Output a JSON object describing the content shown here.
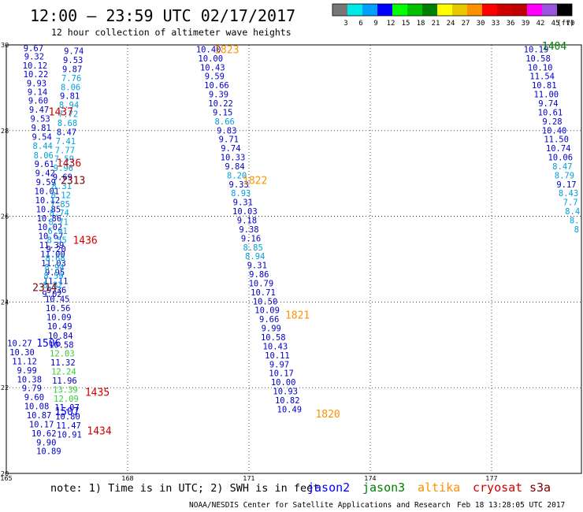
{
  "header": {
    "title": "12:00 – 23:59 UTC 02/17/2017",
    "subtitle": "12 hour collection of altimeter wave heights"
  },
  "colorbar": {
    "ticks": [
      "3",
      "6",
      "9",
      "12",
      "15",
      "18",
      "21",
      "24",
      "27",
      "30",
      "33",
      "36",
      "39",
      "42",
      "45",
      "70"
    ],
    "unit": "(ft)",
    "colors": [
      "#777777",
      "#00e8e8",
      "#00a0ff",
      "#0000ff",
      "#00ff00",
      "#00c000",
      "#008000",
      "#ffff00",
      "#e8c800",
      "#ff9000",
      "#ff0000",
      "#d00000",
      "#c00000",
      "#ff00ff",
      "#9955dd",
      "#000000"
    ]
  },
  "footer": {
    "note": "note:  1) Time is in UTC; 2) SWH is in feet",
    "credit": "NOAA/NESDIS Center for Satellite Applications and Research",
    "timestamp": "Feb 18 13:28:05 UTC 2017"
  },
  "legend": [
    {
      "name": "jason2",
      "color": "#0000ff"
    },
    {
      "name": "jason3",
      "color": "#008000"
    },
    {
      "name": "altika",
      "color": "#ff9000"
    },
    {
      "name": "cryosat",
      "color": "#d00000"
    },
    {
      "name": "s3a",
      "color": "#7b0000"
    }
  ],
  "chart_data": {
    "type": "scatter",
    "x_ticks": [
      "165",
      "168",
      "171",
      "174",
      "177"
    ],
    "y_ticks": [
      "20",
      "22",
      "24",
      "26",
      "28",
      "30"
    ],
    "xlim": [
      165,
      180
    ],
    "ylim": [
      20,
      30
    ],
    "grid": "dotted",
    "colors": {
      "light": "#00a0e0",
      "blue": "#0000c8",
      "green": "#33cc33",
      "orange": "#ff9000",
      "red": "#d00000",
      "darkred": "#7b0000",
      "darkgreen": "#008000",
      "boldblue": "#0000ff"
    },
    "points": [
      {
        "lon": 165.67,
        "lat": 29.93,
        "v": "9.67",
        "c": "blue"
      },
      {
        "lon": 165.69,
        "lat": 29.73,
        "v": "9.32",
        "c": "blue"
      },
      {
        "lon": 165.71,
        "lat": 29.52,
        "v": "10.12",
        "c": "blue"
      },
      {
        "lon": 165.73,
        "lat": 29.32,
        "v": "10.22",
        "c": "blue"
      },
      {
        "lon": 165.75,
        "lat": 29.11,
        "v": "9.93",
        "c": "blue"
      },
      {
        "lon": 165.77,
        "lat": 28.91,
        "v": "9.14",
        "c": "blue"
      },
      {
        "lon": 165.79,
        "lat": 28.7,
        "v": "9.60",
        "c": "blue"
      },
      {
        "lon": 165.81,
        "lat": 28.49,
        "v": "9.47",
        "c": "blue"
      },
      {
        "lon": 165.84,
        "lat": 28.28,
        "v": "9.53",
        "c": "blue"
      },
      {
        "lon": 165.86,
        "lat": 28.07,
        "v": "9.81",
        "c": "blue"
      },
      {
        "lon": 165.88,
        "lat": 27.86,
        "v": "9.54",
        "c": "blue"
      },
      {
        "lon": 165.9,
        "lat": 27.65,
        "v": "8.44",
        "c": "light"
      },
      {
        "lon": 165.92,
        "lat": 27.43,
        "v": "8.06",
        "c": "light"
      },
      {
        "lon": 165.94,
        "lat": 27.22,
        "v": "9.61",
        "c": "blue"
      },
      {
        "lon": 165.96,
        "lat": 27.01,
        "v": "9.42",
        "c": "blue"
      },
      {
        "lon": 165.98,
        "lat": 26.8,
        "v": "9.59",
        "c": "blue"
      },
      {
        "lon": 166.0,
        "lat": 26.59,
        "v": "10.01",
        "c": "blue"
      },
      {
        "lon": 166.02,
        "lat": 26.38,
        "v": "10.12",
        "c": "blue"
      },
      {
        "lon": 166.04,
        "lat": 26.17,
        "v": "10.85",
        "c": "blue"
      },
      {
        "lon": 166.06,
        "lat": 25.96,
        "v": "10.86",
        "c": "blue"
      },
      {
        "lon": 166.08,
        "lat": 25.75,
        "v": "10.02",
        "c": "blue"
      },
      {
        "lon": 166.1,
        "lat": 25.54,
        "v": "10.67",
        "c": "blue"
      },
      {
        "lon": 166.12,
        "lat": 25.33,
        "v": "11.39",
        "c": "blue"
      },
      {
        "lon": 166.15,
        "lat": 25.12,
        "v": "11.00",
        "c": "blue"
      },
      {
        "lon": 166.17,
        "lat": 24.91,
        "v": "11.03",
        "c": "blue"
      },
      {
        "lon": 166.2,
        "lat": 24.7,
        "v": "9.95",
        "c": "blue"
      },
      {
        "lon": 166.22,
        "lat": 24.49,
        "v": "11.11",
        "c": "blue"
      },
      {
        "lon": 166.24,
        "lat": 24.28,
        "v": "9.36",
        "c": "blue"
      },
      {
        "lon": 166.26,
        "lat": 24.07,
        "v": "10.45",
        "c": "blue"
      },
      {
        "lon": 166.28,
        "lat": 23.86,
        "v": "10.56",
        "c": "blue"
      },
      {
        "lon": 166.3,
        "lat": 23.65,
        "v": "10.09",
        "c": "blue"
      },
      {
        "lon": 166.32,
        "lat": 23.44,
        "v": "10.49",
        "c": "blue"
      },
      {
        "lon": 166.34,
        "lat": 23.22,
        "v": "10.84",
        "c": "blue"
      },
      {
        "lon": 166.36,
        "lat": 23.01,
        "v": "10.58",
        "c": "blue"
      },
      {
        "lon": 166.38,
        "lat": 22.8,
        "v": "12.03",
        "c": "green"
      },
      {
        "lon": 166.4,
        "lat": 22.59,
        "v": "11.32",
        "c": "blue"
      },
      {
        "lon": 166.42,
        "lat": 22.38,
        "v": "12.24",
        "c": "green"
      },
      {
        "lon": 166.44,
        "lat": 22.17,
        "v": "11.96",
        "c": "blue"
      },
      {
        "lon": 166.46,
        "lat": 21.96,
        "v": "13.39",
        "c": "green"
      },
      {
        "lon": 166.48,
        "lat": 21.75,
        "v": "12.09",
        "c": "green"
      },
      {
        "lon": 166.5,
        "lat": 21.54,
        "v": "11.07",
        "c": "blue"
      },
      {
        "lon": 166.52,
        "lat": 21.33,
        "v": "10.80",
        "c": "blue"
      },
      {
        "lon": 166.54,
        "lat": 21.12,
        "v": "11.47",
        "c": "blue"
      },
      {
        "lon": 166.56,
        "lat": 20.91,
        "v": "10.91",
        "c": "blue"
      },
      {
        "lon": 166.67,
        "lat": 29.86,
        "v": "9.74",
        "c": "blue"
      },
      {
        "lon": 166.65,
        "lat": 29.65,
        "v": "9.53",
        "c": "blue"
      },
      {
        "lon": 166.63,
        "lat": 29.44,
        "v": "9.87",
        "c": "blue"
      },
      {
        "lon": 166.61,
        "lat": 29.23,
        "v": "7.76",
        "c": "light"
      },
      {
        "lon": 166.59,
        "lat": 29.02,
        "v": "8.06",
        "c": "light"
      },
      {
        "lon": 166.57,
        "lat": 28.81,
        "v": "9.81",
        "c": "blue"
      },
      {
        "lon": 166.55,
        "lat": 28.6,
        "v": "8.94",
        "c": "light"
      },
      {
        "lon": 166.53,
        "lat": 28.39,
        "v": "7.72",
        "c": "light"
      },
      {
        "lon": 166.51,
        "lat": 28.18,
        "v": "8.68",
        "c": "light"
      },
      {
        "lon": 166.49,
        "lat": 27.97,
        "v": "8.47",
        "c": "blue"
      },
      {
        "lon": 166.47,
        "lat": 27.76,
        "v": "7.41",
        "c": "light"
      },
      {
        "lon": 166.45,
        "lat": 27.55,
        "v": "7.77",
        "c": "light"
      },
      {
        "lon": 166.43,
        "lat": 27.34,
        "v": "7.59",
        "c": "light"
      },
      {
        "lon": 166.41,
        "lat": 27.13,
        "v": "9.96",
        "c": "light"
      },
      {
        "lon": 166.39,
        "lat": 26.92,
        "v": "9.69",
        "c": "blue"
      },
      {
        "lon": 166.37,
        "lat": 26.71,
        "v": "8.31",
        "c": "light"
      },
      {
        "lon": 166.35,
        "lat": 26.5,
        "v": "8.12",
        "c": "light"
      },
      {
        "lon": 166.33,
        "lat": 26.29,
        "v": "7.85",
        "c": "light"
      },
      {
        "lon": 166.31,
        "lat": 26.08,
        "v": "8.74",
        "c": "light"
      },
      {
        "lon": 166.29,
        "lat": 25.87,
        "v": "8.71",
        "c": "light"
      },
      {
        "lon": 166.27,
        "lat": 25.66,
        "v": "6.91",
        "c": "light"
      },
      {
        "lon": 166.25,
        "lat": 25.45,
        "v": "8.55",
        "c": "light"
      },
      {
        "lon": 166.23,
        "lat": 25.24,
        "v": "9.20",
        "c": "blue"
      },
      {
        "lon": 166.21,
        "lat": 25.03,
        "v": "8.68",
        "c": "light"
      },
      {
        "lon": 166.19,
        "lat": 24.82,
        "v": "8.94",
        "c": "light"
      },
      {
        "lon": 166.17,
        "lat": 24.61,
        "v": "8.59",
        "c": "light"
      },
      {
        "lon": 166.15,
        "lat": 24.4,
        "v": "8.82",
        "c": "light"
      },
      {
        "lon": 166.13,
        "lat": 24.19,
        "v": "9.02",
        "c": "blue"
      },
      {
        "lon": 165.33,
        "lat": 23.04,
        "v": "10.27",
        "c": "blue"
      },
      {
        "lon": 165.39,
        "lat": 22.83,
        "v": "10.30",
        "c": "blue"
      },
      {
        "lon": 165.45,
        "lat": 22.62,
        "v": "11.12",
        "c": "blue"
      },
      {
        "lon": 165.51,
        "lat": 22.41,
        "v": "9.99",
        "c": "blue"
      },
      {
        "lon": 165.57,
        "lat": 22.2,
        "v": "10.38",
        "c": "blue"
      },
      {
        "lon": 165.63,
        "lat": 21.99,
        "v": "9.79",
        "c": "blue"
      },
      {
        "lon": 165.69,
        "lat": 21.78,
        "v": "9.60",
        "c": "blue"
      },
      {
        "lon": 165.75,
        "lat": 21.57,
        "v": "10.08",
        "c": "blue"
      },
      {
        "lon": 165.81,
        "lat": 21.36,
        "v": "10.87",
        "c": "blue"
      },
      {
        "lon": 165.87,
        "lat": 21.15,
        "v": "10.17",
        "c": "blue"
      },
      {
        "lon": 165.93,
        "lat": 20.94,
        "v": "10.62",
        "c": "blue"
      },
      {
        "lon": 165.99,
        "lat": 20.73,
        "v": "9.90",
        "c": "blue"
      },
      {
        "lon": 166.05,
        "lat": 20.52,
        "v": "10.89",
        "c": "blue"
      },
      {
        "lon": 170.0,
        "lat": 29.9,
        "v": "10.40",
        "c": "blue"
      },
      {
        "lon": 170.05,
        "lat": 29.69,
        "v": "10.00",
        "c": "blue"
      },
      {
        "lon": 170.1,
        "lat": 29.48,
        "v": "10.43",
        "c": "blue"
      },
      {
        "lon": 170.15,
        "lat": 29.27,
        "v": "9.59",
        "c": "blue"
      },
      {
        "lon": 170.2,
        "lat": 29.06,
        "v": "10.66",
        "c": "blue"
      },
      {
        "lon": 170.25,
        "lat": 28.85,
        "v": "9.39",
        "c": "blue"
      },
      {
        "lon": 170.3,
        "lat": 28.64,
        "v": "10.22",
        "c": "blue"
      },
      {
        "lon": 170.35,
        "lat": 28.43,
        "v": "9.15",
        "c": "blue"
      },
      {
        "lon": 170.4,
        "lat": 28.22,
        "v": "8.66",
        "c": "light"
      },
      {
        "lon": 170.45,
        "lat": 28.01,
        "v": "9.83",
        "c": "blue"
      },
      {
        "lon": 170.5,
        "lat": 27.8,
        "v": "9.71",
        "c": "blue"
      },
      {
        "lon": 170.55,
        "lat": 27.59,
        "v": "9.74",
        "c": "blue"
      },
      {
        "lon": 170.6,
        "lat": 27.38,
        "v": "10.33",
        "c": "blue"
      },
      {
        "lon": 170.65,
        "lat": 27.17,
        "v": "9.84",
        "c": "blue"
      },
      {
        "lon": 170.7,
        "lat": 26.96,
        "v": "8.20",
        "c": "light"
      },
      {
        "lon": 170.75,
        "lat": 26.75,
        "v": "9.33",
        "c": "blue"
      },
      {
        "lon": 170.8,
        "lat": 26.54,
        "v": "8.93",
        "c": "light"
      },
      {
        "lon": 170.85,
        "lat": 26.33,
        "v": "9.31",
        "c": "blue"
      },
      {
        "lon": 170.9,
        "lat": 26.12,
        "v": "10.03",
        "c": "blue"
      },
      {
        "lon": 170.95,
        "lat": 25.91,
        "v": "9.18",
        "c": "blue"
      },
      {
        "lon": 171.0,
        "lat": 25.7,
        "v": "9.38",
        "c": "blue"
      },
      {
        "lon": 171.05,
        "lat": 25.49,
        "v": "9.16",
        "c": "blue"
      },
      {
        "lon": 171.1,
        "lat": 25.28,
        "v": "8.85",
        "c": "light"
      },
      {
        "lon": 171.15,
        "lat": 25.07,
        "v": "8.94",
        "c": "light"
      },
      {
        "lon": 171.2,
        "lat": 24.86,
        "v": "9.31",
        "c": "blue"
      },
      {
        "lon": 171.25,
        "lat": 24.65,
        "v": "9.86",
        "c": "blue"
      },
      {
        "lon": 171.3,
        "lat": 24.44,
        "v": "10.79",
        "c": "blue"
      },
      {
        "lon": 171.35,
        "lat": 24.23,
        "v": "10.71",
        "c": "blue"
      },
      {
        "lon": 171.4,
        "lat": 24.02,
        "v": "10.50",
        "c": "blue"
      },
      {
        "lon": 171.45,
        "lat": 23.81,
        "v": "10.09",
        "c": "blue"
      },
      {
        "lon": 171.5,
        "lat": 23.6,
        "v": "9.66",
        "c": "blue"
      },
      {
        "lon": 171.55,
        "lat": 23.39,
        "v": "9.99",
        "c": "blue"
      },
      {
        "lon": 171.6,
        "lat": 23.18,
        "v": "10.58",
        "c": "blue"
      },
      {
        "lon": 171.65,
        "lat": 22.97,
        "v": "10.43",
        "c": "blue"
      },
      {
        "lon": 171.7,
        "lat": 22.76,
        "v": "10.11",
        "c": "blue"
      },
      {
        "lon": 171.75,
        "lat": 22.55,
        "v": "9.97",
        "c": "blue"
      },
      {
        "lon": 171.8,
        "lat": 22.34,
        "v": "10.17",
        "c": "blue"
      },
      {
        "lon": 171.85,
        "lat": 22.13,
        "v": "10.00",
        "c": "blue"
      },
      {
        "lon": 171.9,
        "lat": 21.92,
        "v": "10.93",
        "c": "blue"
      },
      {
        "lon": 171.95,
        "lat": 21.71,
        "v": "10.82",
        "c": "blue"
      },
      {
        "lon": 172.0,
        "lat": 21.5,
        "v": "10.49",
        "c": "blue"
      },
      {
        "lon": 178.1,
        "lat": 29.9,
        "v": "10.19",
        "c": "blue"
      },
      {
        "lon": 178.15,
        "lat": 29.69,
        "v": "10.58",
        "c": "blue"
      },
      {
        "lon": 178.2,
        "lat": 29.48,
        "v": "10.10",
        "c": "blue"
      },
      {
        "lon": 178.25,
        "lat": 29.27,
        "v": "11.54",
        "c": "blue"
      },
      {
        "lon": 178.3,
        "lat": 29.06,
        "v": "10.81",
        "c": "blue"
      },
      {
        "lon": 178.35,
        "lat": 28.85,
        "v": "11.00",
        "c": "blue"
      },
      {
        "lon": 178.4,
        "lat": 28.64,
        "v": "9.74",
        "c": "blue"
      },
      {
        "lon": 178.45,
        "lat": 28.43,
        "v": "10.61",
        "c": "blue"
      },
      {
        "lon": 178.5,
        "lat": 28.22,
        "v": "9.28",
        "c": "blue"
      },
      {
        "lon": 178.55,
        "lat": 28.01,
        "v": "10.40",
        "c": "blue"
      },
      {
        "lon": 178.6,
        "lat": 27.8,
        "v": "11.50",
        "c": "blue"
      },
      {
        "lon": 178.65,
        "lat": 27.59,
        "v": "10.74",
        "c": "blue"
      },
      {
        "lon": 178.7,
        "lat": 27.38,
        "v": "10.06",
        "c": "blue"
      },
      {
        "lon": 178.75,
        "lat": 27.17,
        "v": "8.47",
        "c": "light"
      },
      {
        "lon": 178.8,
        "lat": 26.96,
        "v": "8.79",
        "c": "light"
      },
      {
        "lon": 178.85,
        "lat": 26.75,
        "v": "9.17",
        "c": "blue"
      },
      {
        "lon": 178.9,
        "lat": 26.54,
        "v": "8.43",
        "c": "light"
      },
      {
        "lon": 178.95,
        "lat": 26.33,
        "v": "7.7",
        "c": "light"
      },
      {
        "lon": 179.0,
        "lat": 26.12,
        "v": "8.4",
        "c": "light"
      },
      {
        "lon": 179.05,
        "lat": 25.91,
        "v": "8.",
        "c": "light"
      },
      {
        "lon": 179.1,
        "lat": 25.7,
        "v": "8",
        "c": "light"
      }
    ],
    "time_labels": [
      {
        "lon": 170.45,
        "lat": 29.9,
        "v": "1823",
        "c": "orange"
      },
      {
        "lon": 171.15,
        "lat": 26.85,
        "v": "1822",
        "c": "orange"
      },
      {
        "lon": 172.2,
        "lat": 23.7,
        "v": "1821",
        "c": "orange"
      },
      {
        "lon": 172.95,
        "lat": 21.4,
        "v": "1820",
        "c": "orange"
      },
      {
        "lon": 178.55,
        "lat": 29.98,
        "v": "1404",
        "c": "darkgreen"
      },
      {
        "lon": 166.35,
        "lat": 28.45,
        "v": "1437",
        "c": "red"
      },
      {
        "lon": 166.55,
        "lat": 27.25,
        "v": "1436",
        "c": "red"
      },
      {
        "lon": 166.95,
        "lat": 25.45,
        "v": "1436",
        "c": "red"
      },
      {
        "lon": 166.65,
        "lat": 26.85,
        "v": "2313",
        "c": "darkred"
      },
      {
        "lon": 165.95,
        "lat": 24.35,
        "v": "2314",
        "c": "darkred"
      },
      {
        "lon": 166.05,
        "lat": 23.05,
        "v": "1506",
        "c": "boldblue"
      },
      {
        "lon": 166.5,
        "lat": 21.45,
        "v": "1507",
        "c": "boldblue"
      },
      {
        "lon": 167.25,
        "lat": 21.9,
        "v": "1435",
        "c": "red"
      },
      {
        "lon": 167.3,
        "lat": 21.0,
        "v": "1434",
        "c": "red"
      }
    ]
  }
}
